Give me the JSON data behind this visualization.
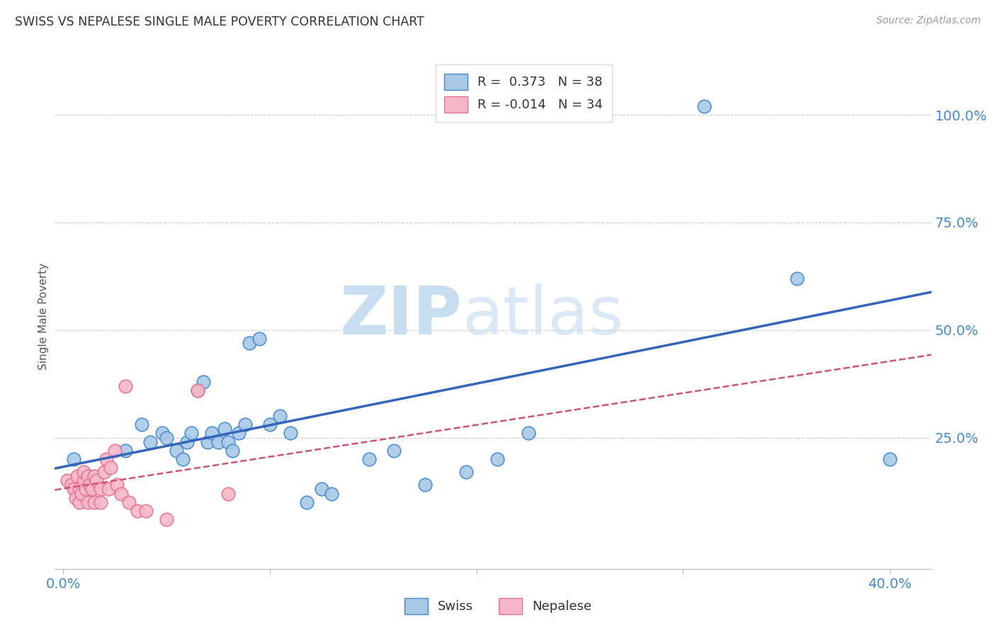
{
  "title": "SWISS VS NEPALESE SINGLE MALE POVERTY CORRELATION CHART",
  "source": "Source: ZipAtlas.com",
  "ylabel": "Single Male Poverty",
  "ytick_labels": [
    "100.0%",
    "75.0%",
    "50.0%",
    "25.0%"
  ],
  "ytick_values": [
    1.0,
    0.75,
    0.5,
    0.25
  ],
  "xlim": [
    -0.004,
    0.42
  ],
  "ylim": [
    -0.055,
    1.12
  ],
  "swiss_color": "#a8c8e8",
  "swiss_edge_color": "#4488cc",
  "nepalese_color": "#f4b8c8",
  "nepalese_edge_color": "#e87090",
  "swiss_line_color": "#3366bb",
  "nepalese_line_color": "#cc5577",
  "swiss_R": 0.373,
  "swiss_N": 38,
  "nepalese_R": -0.014,
  "nepalese_N": 34,
  "watermark_zip": "ZIP",
  "watermark_atlas": "atlas",
  "swiss_x": [
    0.005,
    0.03,
    0.038,
    0.042,
    0.048,
    0.05,
    0.055,
    0.058,
    0.06,
    0.062,
    0.065,
    0.068,
    0.07,
    0.072,
    0.075,
    0.078,
    0.08,
    0.082,
    0.085,
    0.088,
    0.09,
    0.095,
    0.1,
    0.105,
    0.11,
    0.118,
    0.125,
    0.13,
    0.148,
    0.16,
    0.175,
    0.195,
    0.21,
    0.225,
    0.26,
    0.31,
    0.355,
    0.4
  ],
  "swiss_y": [
    0.2,
    0.22,
    0.28,
    0.24,
    0.26,
    0.25,
    0.22,
    0.2,
    0.24,
    0.26,
    0.36,
    0.38,
    0.24,
    0.26,
    0.24,
    0.27,
    0.24,
    0.22,
    0.26,
    0.28,
    0.47,
    0.48,
    0.28,
    0.3,
    0.26,
    0.1,
    0.13,
    0.12,
    0.2,
    0.22,
    0.14,
    0.17,
    0.2,
    0.26,
    1.0,
    1.02,
    0.62,
    0.2
  ],
  "nepalese_x": [
    0.002,
    0.004,
    0.005,
    0.006,
    0.007,
    0.008,
    0.008,
    0.009,
    0.01,
    0.01,
    0.011,
    0.012,
    0.012,
    0.013,
    0.014,
    0.015,
    0.015,
    0.016,
    0.018,
    0.018,
    0.02,
    0.021,
    0.022,
    0.023,
    0.025,
    0.026,
    0.028,
    0.03,
    0.032,
    0.036,
    0.04,
    0.05,
    0.065,
    0.08
  ],
  "nepalese_y": [
    0.15,
    0.14,
    0.13,
    0.11,
    0.16,
    0.13,
    0.1,
    0.12,
    0.15,
    0.17,
    0.13,
    0.1,
    0.16,
    0.14,
    0.13,
    0.1,
    0.16,
    0.15,
    0.1,
    0.13,
    0.17,
    0.2,
    0.13,
    0.18,
    0.22,
    0.14,
    0.12,
    0.37,
    0.1,
    0.08,
    0.08,
    0.06,
    0.36,
    0.12
  ],
  "grid_color": "#cccccc",
  "background_color": "#ffffff",
  "title_color": "#333333",
  "tick_color": "#4488cc"
}
